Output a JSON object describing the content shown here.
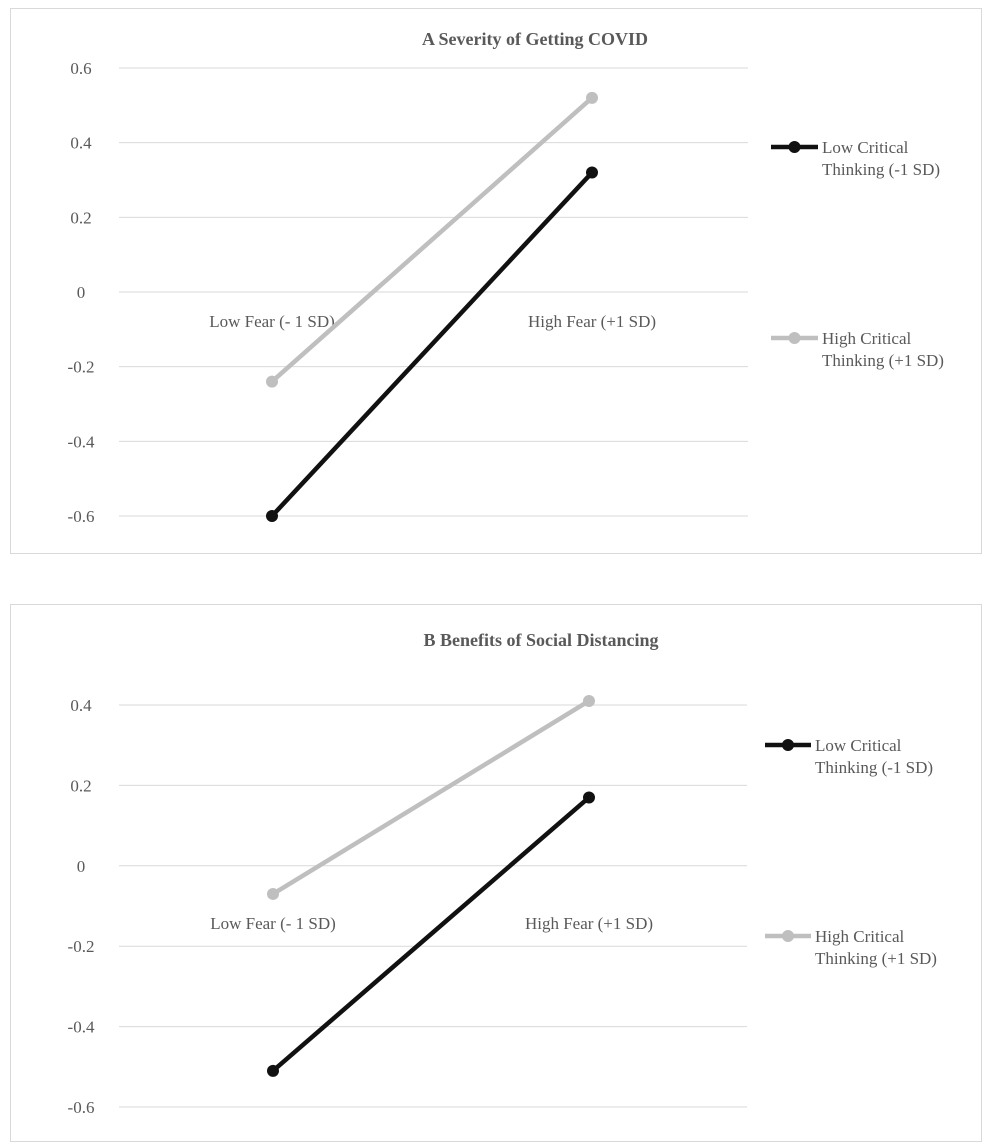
{
  "chart_data": [
    {
      "type": "line",
      "title": "A Severity of Getting COVID",
      "categories": [
        "Low Fear (- 1 SD)",
        "High Fear (+1 SD)"
      ],
      "series": [
        {
          "name": "Low Critical Thinking (-1 SD)",
          "legend_lines": [
            "Low Critical",
            "Thinking (-1 SD)"
          ],
          "color": "#111111",
          "values": [
            -0.6,
            0.32
          ]
        },
        {
          "name": "High Critical Thinking (+1 SD)",
          "legend_lines": [
            "High Critical",
            "Thinking (+1 SD)"
          ],
          "color": "#bfbfbf",
          "values": [
            -0.24,
            0.52
          ]
        }
      ],
      "y_ticks": [
        "0.6",
        "0.4",
        "0.2",
        "0",
        "-0.2",
        "-0.4",
        "-0.6"
      ],
      "ylim": [
        -0.6,
        0.6
      ],
      "grid": true,
      "legend_position": "right"
    },
    {
      "type": "line",
      "title": "B Benefits of Social Distancing",
      "categories": [
        "Low Fear (- 1 SD)",
        "High Fear (+1 SD)"
      ],
      "series": [
        {
          "name": "Low Critical Thinking (-1 SD)",
          "legend_lines": [
            "Low Critical",
            "Thinking (-1 SD)"
          ],
          "color": "#111111",
          "values": [
            -0.51,
            0.17
          ]
        },
        {
          "name": "High Critical Thinking (+1 SD)",
          "legend_lines": [
            "High Critical",
            "Thinking (+1 SD)"
          ],
          "color": "#bfbfbf",
          "values": [
            -0.07,
            0.41
          ]
        }
      ],
      "y_ticks": [
        "0.4",
        "0.2",
        "0",
        "-0.2",
        "-0.4",
        "-0.6"
      ],
      "ylim": [
        -0.6,
        0.4
      ],
      "grid": true,
      "legend_position": "right"
    }
  ]
}
